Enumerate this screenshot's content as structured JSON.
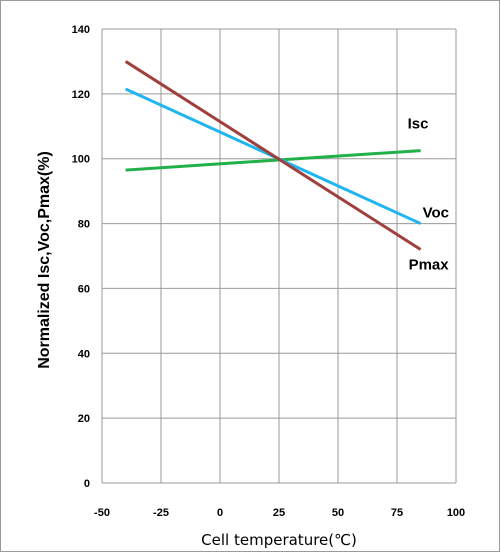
{
  "chart_data": {
    "type": "line",
    "title": "",
    "xlabel": "Cell temperature(℃)",
    "ylabel": "Normalized Isc,Voc,Pmax(%)",
    "xlim": [
      -50,
      100
    ],
    "ylim": [
      0,
      140
    ],
    "xticks": [
      -50,
      -25,
      0,
      25,
      50,
      75,
      100
    ],
    "yticks": [
      0,
      20,
      40,
      60,
      80,
      100,
      120,
      140
    ],
    "grid": true,
    "legend": "none",
    "series": [
      {
        "name": "Isc",
        "color": "#22b04a",
        "x": [
          -40,
          85
        ],
        "y": [
          96.5,
          102.5
        ]
      },
      {
        "name": "Voc",
        "color": "#1fb6f0",
        "x": [
          -40,
          85
        ],
        "y": [
          121.5,
          80
        ]
      },
      {
        "name": "Pmax",
        "color": "#a0403c",
        "x": [
          -40,
          85
        ],
        "y": [
          130,
          72
        ]
      }
    ]
  }
}
